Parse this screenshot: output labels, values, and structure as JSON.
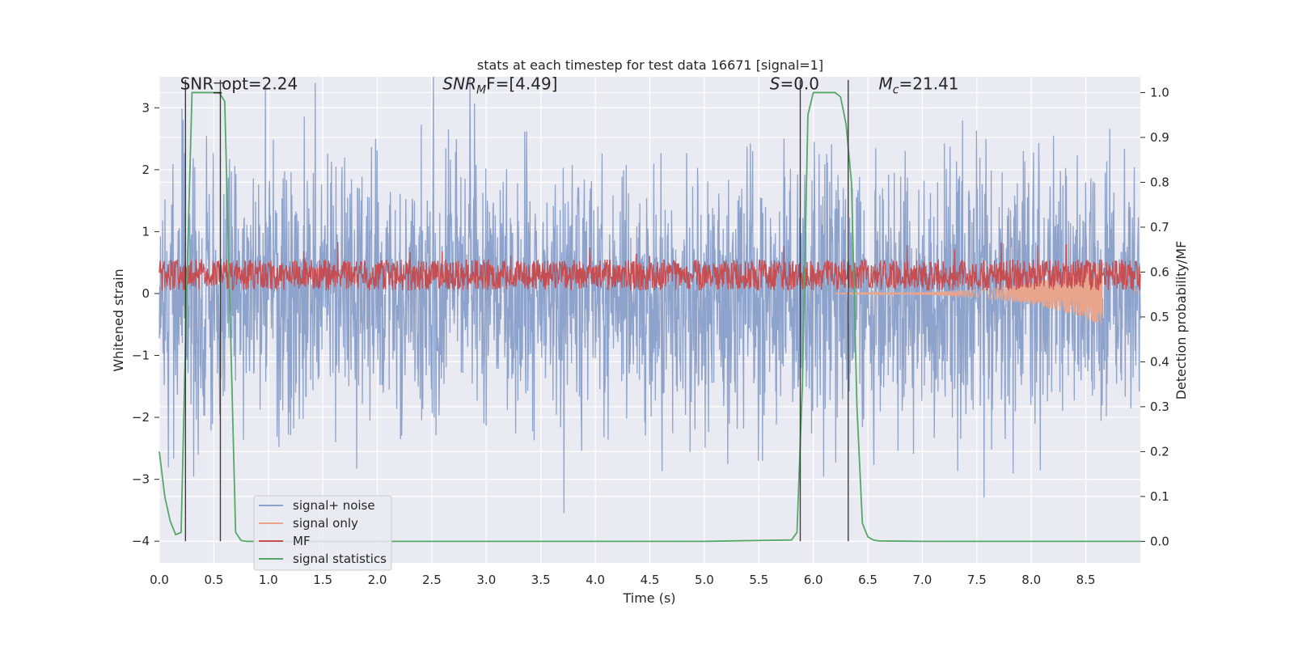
{
  "chart_data": {
    "type": "line",
    "title": "stats at each timestep for test data 16671 [signal=1]",
    "xlabel": "Time (s)",
    "ylabel": "Whitened strain",
    "ylabel_right": "Detection probability/MF",
    "xlim": [
      0.0,
      9.0
    ],
    "ylim": [
      -4.35,
      3.5
    ],
    "ylim_right": [
      -0.048,
      1.035
    ],
    "x_ticks": [
      0.0,
      0.5,
      1.0,
      1.5,
      2.0,
      2.5,
      3.0,
      3.5,
      4.0,
      4.5,
      5.0,
      5.5,
      6.0,
      6.5,
      7.0,
      7.5,
      8.0,
      8.5
    ],
    "x_tick_labels": [
      "0.0",
      "0.5",
      "1.0",
      "1.5",
      "2.0",
      "2.5",
      "3.0",
      "3.5",
      "4.0",
      "4.5",
      "5.0",
      "5.5",
      "6.0",
      "6.5",
      "7.0",
      "7.5",
      "8.0",
      "8.5"
    ],
    "y_ticks": [
      3,
      2,
      1,
      0,
      -1,
      -2,
      -3,
      -4
    ],
    "y_tick_labels": [
      "3",
      "2",
      "1",
      "0",
      "−1",
      "−2",
      "−3",
      "−4"
    ],
    "y_right_ticks": [
      1.0,
      0.9,
      0.8,
      0.7,
      0.6,
      0.5,
      0.4,
      0.3,
      0.2,
      0.1,
      0.0
    ],
    "y_right_tick_labels": [
      "1.0",
      "0.9",
      "0.8",
      "0.7",
      "0.6",
      "0.5",
      "0.4",
      "0.3",
      "0.2",
      "0.1",
      "0.0"
    ],
    "grid": true,
    "legend_position": "lower-left",
    "annotations": [
      {
        "x": 0.19,
        "y": 3.3,
        "text": "SNR_opt=2.24",
        "italic": false
      },
      {
        "x": 2.6,
        "y": 3.3,
        "text_main": "SNR",
        "text_sub": "M",
        "text_rest": "F=[4.49]",
        "italic": true
      },
      {
        "x": 5.6,
        "y": 3.3,
        "text_main": "S",
        "text_rest": "=0.0",
        "italic": true
      },
      {
        "x": 6.6,
        "y": 3.3,
        "text_main": "M",
        "text_sub": "c",
        "text_rest": "=21.41",
        "italic": true
      }
    ],
    "series": [
      {
        "name": "signal+ noise",
        "color": "#8ea3cc",
        "axis": "left",
        "kind": "noise",
        "amplitude_typical": 2.2,
        "amplitude_peak": 3.8
      },
      {
        "name": "signal only",
        "color": "#e8a58c",
        "axis": "left",
        "kind": "chirp",
        "x_start": 6.2,
        "x_end": 8.65,
        "peak_amplitude": 0.5
      },
      {
        "name": "MF",
        "color": "#c44e52",
        "axis": "left",
        "kind": "band",
        "center": 0.3,
        "half_width": 0.25
      },
      {
        "name": "signal statistics",
        "color": "#55a868",
        "axis": "right",
        "x": [
          0.0,
          0.05,
          0.1,
          0.15,
          0.2,
          0.25,
          0.3,
          0.35,
          0.4,
          0.45,
          0.5,
          0.55,
          0.6,
          0.65,
          0.7,
          0.75,
          0.8,
          1.0,
          2.0,
          3.0,
          4.0,
          5.0,
          5.8,
          5.85,
          5.9,
          5.95,
          6.0,
          6.05,
          6.1,
          6.15,
          6.2,
          6.25,
          6.3,
          6.35,
          6.4,
          6.45,
          6.5,
          6.55,
          6.6,
          7.0,
          8.0,
          9.0
        ],
        "y": [
          0.2,
          0.1,
          0.045,
          0.015,
          0.02,
          0.55,
          1.0,
          1.0,
          1.0,
          1.0,
          1.0,
          1.0,
          0.98,
          0.5,
          0.02,
          0.002,
          0.0,
          0.0,
          0.0,
          0.0,
          0.0,
          0.0,
          0.003,
          0.02,
          0.35,
          0.95,
          1.0,
          1.0,
          1.0,
          1.0,
          1.0,
          0.99,
          0.93,
          0.8,
          0.3,
          0.04,
          0.01,
          0.003,
          0.001,
          0.0,
          0.0,
          0.0
        ]
      }
    ],
    "vertical_markers": [
      0.24,
      0.56,
      5.88,
      6.32
    ],
    "hcap_marker": {
      "x": [
        0.5,
        0.6
      ],
      "y": 3.4
    }
  }
}
